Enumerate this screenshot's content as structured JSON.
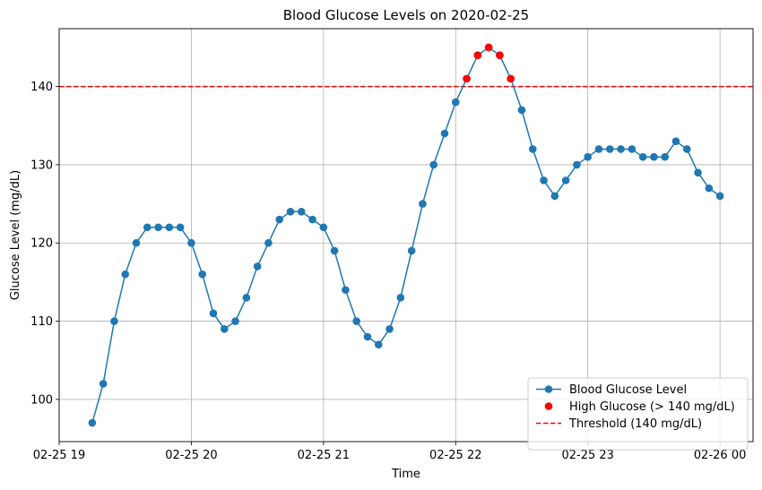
{
  "chart_data": {
    "type": "line",
    "title": "Blood Glucose Levels on 2020-02-25",
    "xlabel": "Time",
    "ylabel": "Glucose Level (mg/dL)",
    "x_range": [
      "2020-02-25 19:00",
      "2020-02-26 00:15"
    ],
    "ylim": [
      94.6,
      147.4
    ],
    "grid": true,
    "legend_position": "lower right",
    "x_ticks": [
      {
        "time": "2020-02-25 19:00",
        "label": "02-25 19"
      },
      {
        "time": "2020-02-25 20:00",
        "label": "02-25 20"
      },
      {
        "time": "2020-02-25 21:00",
        "label": "02-25 21"
      },
      {
        "time": "2020-02-25 22:00",
        "label": "02-25 22"
      },
      {
        "time": "2020-02-25 23:00",
        "label": "02-25 23"
      },
      {
        "time": "2020-02-26 00:00",
        "label": "02-26 00"
      }
    ],
    "y_ticks": [
      100,
      110,
      120,
      130,
      140
    ],
    "series": [
      {
        "name": "Blood Glucose Level",
        "style": "line-marker",
        "color": "#1f77b4",
        "x": [
          "19:15",
          "19:20",
          "19:25",
          "19:30",
          "19:35",
          "19:40",
          "19:45",
          "19:50",
          "19:55",
          "20:00",
          "20:05",
          "20:10",
          "20:15",
          "20:20",
          "20:25",
          "20:30",
          "20:35",
          "20:40",
          "20:45",
          "20:50",
          "20:55",
          "21:00",
          "21:05",
          "21:10",
          "21:15",
          "21:20",
          "21:25",
          "21:30",
          "21:35",
          "21:40",
          "21:45",
          "21:50",
          "21:55",
          "22:00",
          "22:05",
          "22:10",
          "22:15",
          "22:20",
          "22:25",
          "22:30",
          "22:35",
          "22:40",
          "22:45",
          "22:50",
          "22:55",
          "23:00",
          "23:05",
          "23:10",
          "23:15",
          "23:20",
          "23:25",
          "23:30",
          "23:35",
          "23:40",
          "23:45",
          "23:50",
          "23:55",
          "00:00"
        ],
        "y": [
          97,
          102,
          110,
          116,
          120,
          122,
          122,
          122,
          122,
          120,
          116,
          111,
          109,
          110,
          113,
          117,
          120,
          123,
          124,
          124,
          123,
          122,
          119,
          114,
          110,
          108,
          107,
          109,
          113,
          119,
          125,
          130,
          134,
          138,
          141,
          144,
          145,
          144,
          141,
          137,
          132,
          128,
          126,
          128,
          130,
          131,
          132,
          132,
          132,
          132,
          131,
          131,
          131,
          133,
          132,
          129,
          127,
          126
        ]
      },
      {
        "name": "High Glucose (> 140 mg/dL)",
        "style": "marker",
        "color": "#ff0000",
        "x": [
          "22:05",
          "22:10",
          "22:15",
          "22:20",
          "22:25"
        ],
        "y": [
          141,
          144,
          145,
          144,
          141
        ]
      },
      {
        "name": "Threshold (140 mg/dL)",
        "style": "dashed-hline",
        "color": "#ff0000",
        "y": 140
      }
    ]
  }
}
